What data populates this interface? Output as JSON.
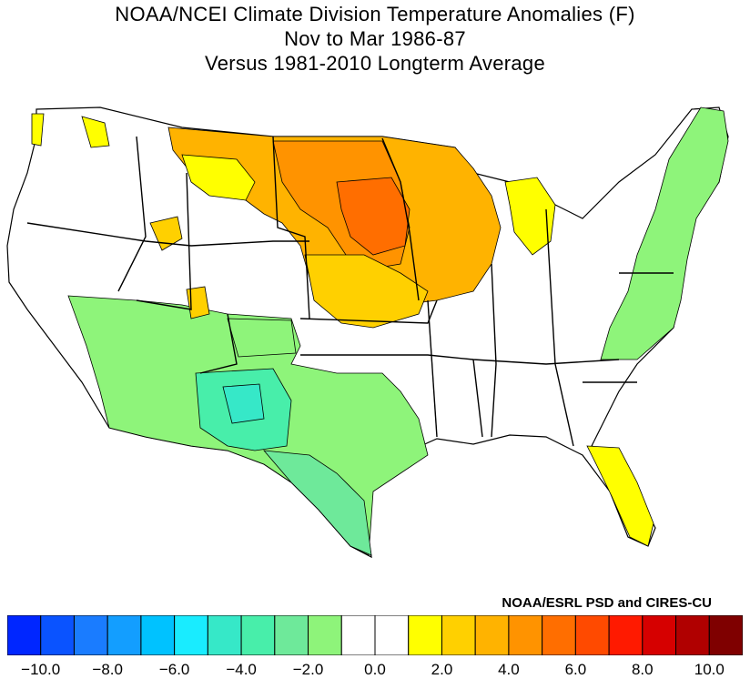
{
  "title": {
    "line1": "NOAA/NCEI Climate Division Temperature Anomalies (F)",
    "line2": "Nov to Mar 1986-87",
    "line3": "Versus 1981-2010 Longterm Average"
  },
  "credit": "NOAA/ESRL PSD and CIRES-CU",
  "colorbar": {
    "colors": [
      "#0026ff",
      "#0a53ff",
      "#1a7cff",
      "#139eff",
      "#00c2ff",
      "#19ecff",
      "#36e8c8",
      "#48eeaa",
      "#6ee99a",
      "#8ef47a",
      "#ffffff",
      "#ffffff",
      "#ffff00",
      "#ffd000",
      "#ffb300",
      "#ff9300",
      "#ff6e00",
      "#ff4a00",
      "#ff1a00",
      "#d60000",
      "#b00000",
      "#7f0000"
    ],
    "ticks": [
      "-10.0",
      "-8.0",
      "-6.0",
      "-4.0",
      "-2.0",
      "0.0",
      "2.0",
      "4.0",
      "6.0",
      "8.0",
      "10.0"
    ]
  },
  "map_regions": [
    {
      "name": "northern-plains-warm",
      "anomaly_class": "4.0 to 5.0"
    },
    {
      "name": "upper-midwest-warm",
      "anomaly_class": "2.0 to 4.0"
    },
    {
      "name": "southwest-cool",
      "anomaly_class": "-2.0 to -4.0"
    },
    {
      "name": "northeast-cool",
      "anomaly_class": "-1.0 to -2.0"
    },
    {
      "name": "florida-warm",
      "anomaly_class": "1.0 to 2.0"
    }
  ]
}
